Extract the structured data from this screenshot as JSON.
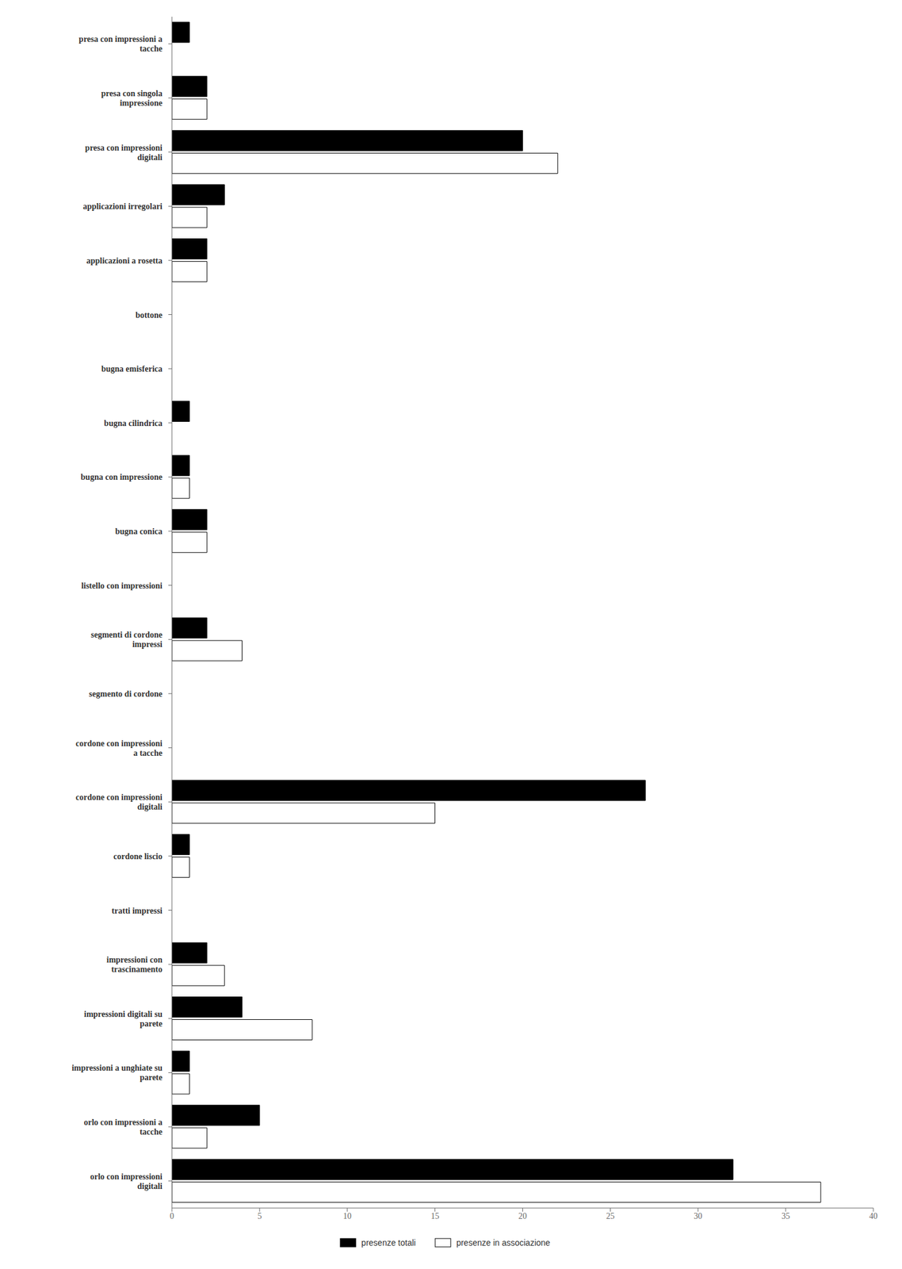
{
  "chart_data": {
    "type": "bar",
    "orientation": "horizontal",
    "categories": [
      "presa con impressioni a\ntacche",
      "presa con singola\nimpressione",
      "presa con impressioni\ndigitali",
      "applicazioni irregolari",
      "applicazioni a rosetta",
      "bottone",
      "bugna emisferica",
      "bugna cilindrica",
      "bugna con impressione",
      "bugna conica",
      "listello con impressioni",
      "segmenti di cordone\nimpressi",
      "segmento di cordone",
      "cordone con impressioni\na tacche",
      "cordone con impressioni\ndigitali",
      "cordone liscio",
      "tratti impressi",
      "impressioni con\ntrascinamento",
      "impressioni digitali su\nparete",
      "impressioni a unghiate su\nparete",
      "orlo con impressioni a\ntacche",
      "orlo con impressioni\ndigitali"
    ],
    "series": [
      {
        "name": "presenze totali",
        "color": "#000000",
        "values": [
          1,
          2,
          20,
          3,
          2,
          0,
          0,
          1,
          1,
          2,
          0,
          2,
          0,
          0,
          27,
          1,
          0,
          2,
          4,
          1,
          5,
          32
        ]
      },
      {
        "name": "presenze in associazione",
        "color": "#ffffff",
        "values": [
          0,
          2,
          22,
          2,
          2,
          0,
          0,
          0,
          1,
          2,
          0,
          4,
          0,
          0,
          15,
          1,
          0,
          3,
          8,
          1,
          2,
          37
        ]
      }
    ],
    "xlim": [
      0,
      40
    ],
    "xticks": [
      0,
      5,
      10,
      15,
      20,
      25,
      30,
      35,
      40
    ],
    "grid": false,
    "legend": "bottom"
  }
}
